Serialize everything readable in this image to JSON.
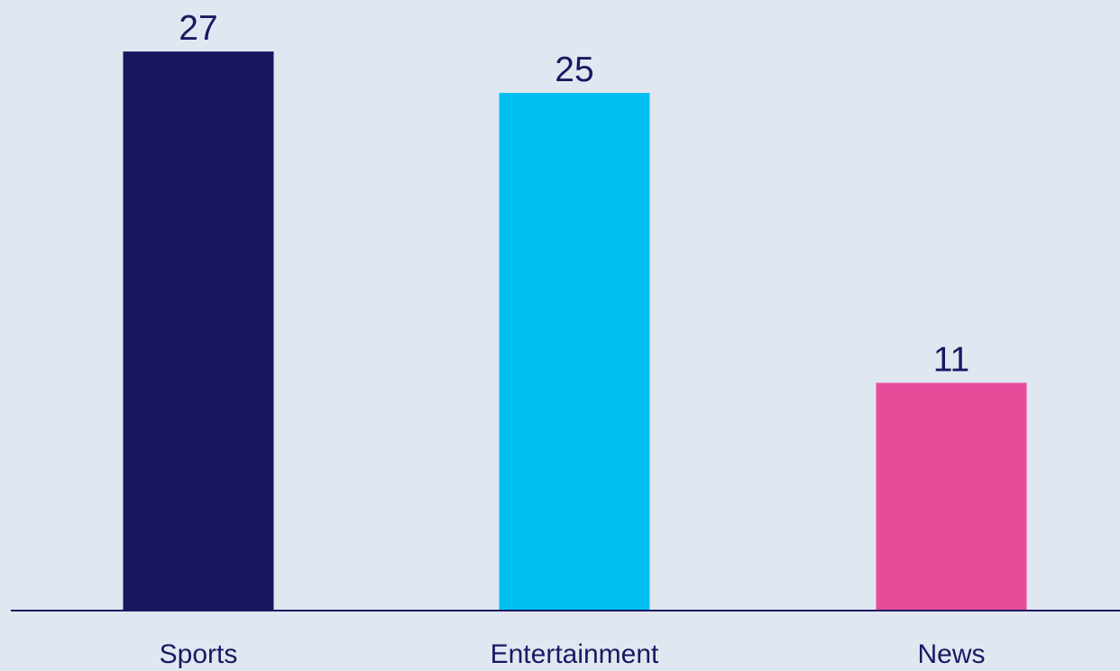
{
  "chart_data": {
    "type": "bar",
    "categories": [
      "Sports",
      "Entertainment",
      "News"
    ],
    "values": [
      27,
      25,
      11
    ],
    "data_labels": [
      "27",
      "25",
      "11"
    ],
    "colors": [
      "#1B1660",
      "#00C0F3",
      "#E94B9B"
    ],
    "title": "",
    "xlabel": "",
    "ylabel": "",
    "ylim": [
      0,
      28.4
    ],
    "grid": false,
    "legend": "none",
    "baseline_color": "#1B1862",
    "label_color": "#1B1862"
  }
}
